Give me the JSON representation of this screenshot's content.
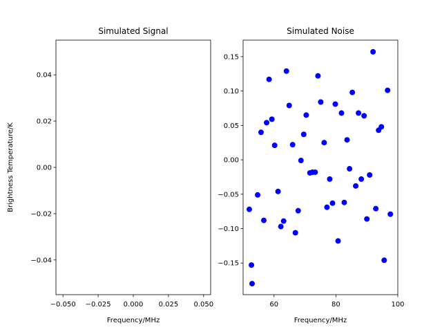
{
  "chart_data": [
    {
      "type": "scatter",
      "title": "Simulated Signal",
      "xlabel": "Frequency/MHz",
      "ylabel": "Brightness Temperature/K",
      "x": [],
      "y": [],
      "color": "blue",
      "xlim": [
        -0.055,
        0.055
      ],
      "ylim": [
        -0.055,
        0.055
      ],
      "xticks": [
        {
          "value": -0.05,
          "label": "−0.050"
        },
        {
          "value": -0.025,
          "label": "−0.025"
        },
        {
          "value": 0,
          "label": "0.000"
        },
        0.025,
        {
          "value": 0.05,
          "label": "0.050"
        }
      ],
      "yticks": [
        {
          "value": -0.04,
          "label": "−0.04"
        },
        {
          "value": -0.02,
          "label": "−0.02"
        },
        {
          "value": 0,
          "label": "0.00"
        },
        0.02,
        0.04
      ]
    },
    {
      "type": "scatter",
      "title": "Simulated Noise",
      "xlabel": "Frequency/MHz",
      "color": "blue",
      "x": [
        52,
        52.7,
        52.9,
        54.7,
        55.8,
        56.7,
        57.6,
        58.4,
        59.3,
        60.2,
        61.3,
        62.2,
        63.1,
        64.0,
        64.9,
        66.0,
        66.9,
        67.8,
        68.7,
        69.6,
        70.4,
        71.6,
        72.4,
        73.3,
        74.2,
        75.1,
        76.2,
        77.1,
        78.0,
        78.9,
        79.8,
        80.7,
        81.8,
        82.7,
        83.6,
        84.4,
        85.3,
        86.4,
        87.3,
        88.2,
        89.1,
        90.0,
        90.9,
        92.0,
        92.9,
        93.8,
        94.7,
        95.6,
        96.7,
        97.6
      ],
      "y": [
        -0.072,
        -0.153,
        -0.18,
        -0.051,
        0.04,
        -0.088,
        0.054,
        0.117,
        0.059,
        0.021,
        -0.046,
        -0.097,
        -0.089,
        0.129,
        0.079,
        0.022,
        -0.106,
        -0.074,
        -0.001,
        0.037,
        0.065,
        -0.019,
        -0.018,
        -0.018,
        0.122,
        0.084,
        0.025,
        -0.069,
        -0.028,
        -0.063,
        0.081,
        -0.118,
        0.068,
        -0.062,
        0.029,
        -0.013,
        0.098,
        -0.038,
        0.068,
        -0.028,
        0.064,
        -0.086,
        -0.022,
        0.157,
        -0.071,
        0.043,
        0.048,
        -0.146,
        0.101,
        -0.079
      ],
      "xlim": [
        50,
        100
      ],
      "ylim": [
        -0.196,
        0.174
      ],
      "xticks": [
        60,
        80,
        100
      ],
      "yticks": [
        {
          "value": -0.15,
          "label": "−0.15"
        },
        {
          "value": -0.1,
          "label": "−0.10"
        },
        {
          "value": -0.05,
          "label": "−0.05"
        },
        {
          "value": 0,
          "label": "0.00"
        },
        0.05,
        {
          "value": 0.1,
          "label": "0.10"
        },
        0.15
      ]
    }
  ]
}
